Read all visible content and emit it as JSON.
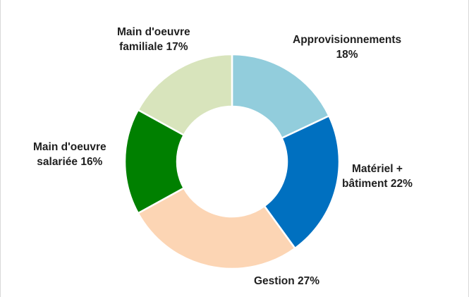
{
  "chart_data": {
    "type": "pie",
    "style": "donut",
    "start_angle_deg": 0,
    "direction": "clockwise",
    "slices": [
      {
        "name": "Approvisionnements",
        "value": 18,
        "label_lines": [
          "Approvisionnements",
          "18%"
        ],
        "color": "#92cddc"
      },
      {
        "name": "Matériel + bâtiment",
        "value": 22,
        "label_lines": [
          "Matériel +",
          "bâtiment 22%"
        ],
        "color": "#0070c0"
      },
      {
        "name": "Gestion",
        "value": 27,
        "label_lines": [
          "Gestion 27%"
        ],
        "color": "#fcd5b4"
      },
      {
        "name": "Main d'oeuvre salariée",
        "value": 16,
        "label_lines": [
          "Main d'oeuvre",
          "salariée 16%"
        ],
        "color": "#008000"
      },
      {
        "name": "Main d'oeuvre familiale",
        "value": 17,
        "label_lines": [
          "Main d'oeuvre",
          "familiale 17%"
        ],
        "color": "#d8e4bc"
      }
    ]
  }
}
